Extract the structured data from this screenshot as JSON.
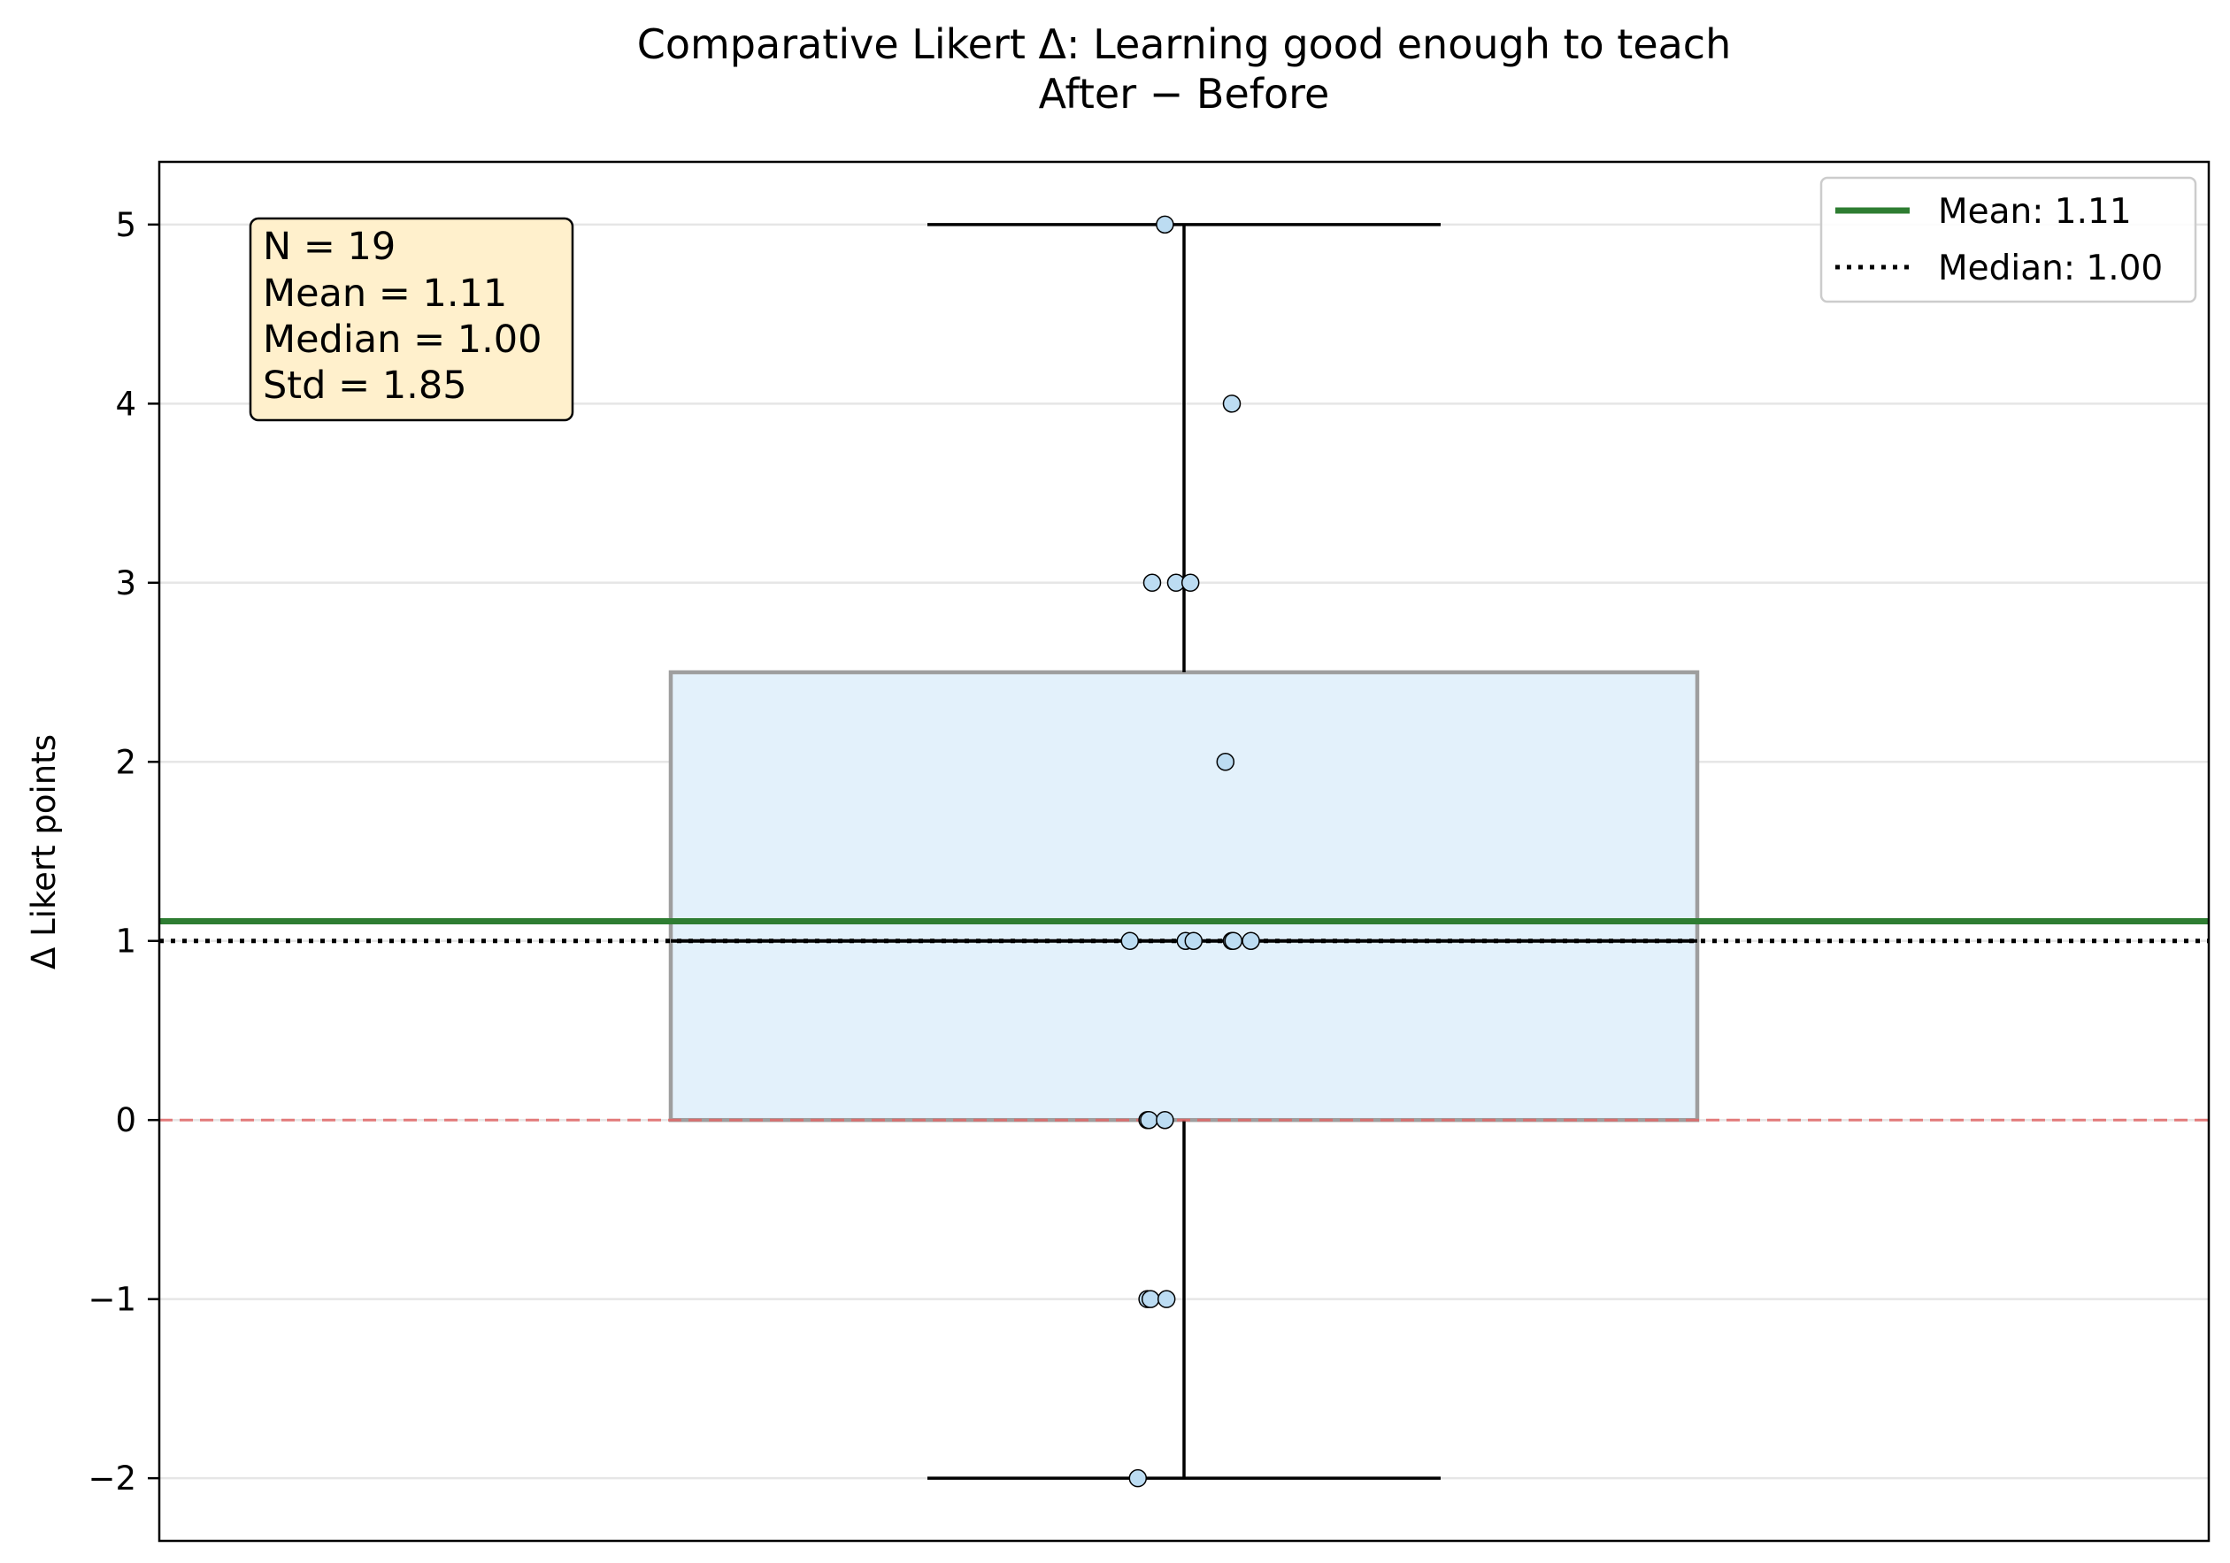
{
  "chart_data": {
    "type": "box",
    "title": "Comparative Likert Δ: Learning good enough to teach",
    "subtitle": "After − Before",
    "xlabel": "",
    "ylabel": "Δ Likert points",
    "ylim": [
      -2.35,
      5.35
    ],
    "yticks": [
      -2,
      -1,
      0,
      1,
      2,
      3,
      4,
      5
    ],
    "ytick_labels": [
      "−2",
      "−1",
      "0",
      "1",
      "2",
      "3",
      "4",
      "5"
    ],
    "grid": "horizontal",
    "legend_position": "top-right",
    "box": {
      "whisker_low": -2,
      "q1": 0,
      "median": 1,
      "q3": 2.5,
      "whisker_high": 5
    },
    "points": [
      {
        "y": 5,
        "jitter": -0.12
      },
      {
        "y": 4,
        "jitter": 0.3
      },
      {
        "y": 3,
        "jitter": -0.2
      },
      {
        "y": 3,
        "jitter": -0.05
      },
      {
        "y": 3,
        "jitter": 0.04
      },
      {
        "y": 2,
        "jitter": 0.26
      },
      {
        "y": 1,
        "jitter": -0.34
      },
      {
        "y": 1,
        "jitter": 0.01
      },
      {
        "y": 1,
        "jitter": 0.06
      },
      {
        "y": 1,
        "jitter": 0.3
      },
      {
        "y": 1,
        "jitter": 0.31
      },
      {
        "y": 1,
        "jitter": 0.42
      },
      {
        "y": 0,
        "jitter": -0.23
      },
      {
        "y": 0,
        "jitter": -0.22
      },
      {
        "y": 0,
        "jitter": -0.12
      },
      {
        "y": -1,
        "jitter": -0.23
      },
      {
        "y": -1,
        "jitter": -0.21
      },
      {
        "y": -1,
        "jitter": -0.11
      },
      {
        "y": -2,
        "jitter": -0.29
      }
    ],
    "reference_lines": [
      {
        "name": "mean",
        "y": 1.11,
        "label": "Mean: 1.11",
        "color": "#2e7d32",
        "style": "solid"
      },
      {
        "name": "median",
        "y": 1.0,
        "label": "Median: 1.00",
        "color": "#000000",
        "style": "dotted"
      },
      {
        "name": "zero",
        "y": 0,
        "label": "",
        "color": "#e06666",
        "style": "dashed"
      }
    ],
    "stats_box": {
      "lines": [
        "N = 19",
        "Mean = 1.11",
        "Median = 1.00",
        "Std = 1.85"
      ]
    },
    "colors": {
      "box_fill": "#e3f1fb",
      "box_edge": "#9e9e9e",
      "point_fill": "#bcdcf2",
      "stats_fill": "#fff0cc",
      "grid": "#e6e6e6"
    }
  }
}
